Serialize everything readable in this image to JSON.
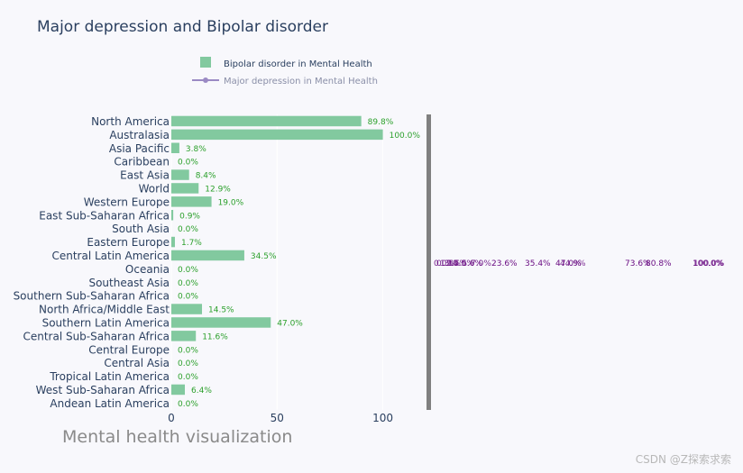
{
  "chart_data": {
    "type": "bar",
    "orientation": "horizontal",
    "title": "Major depression and Bipolar disorder",
    "subtitle": "Mental health visualization",
    "xlim": [
      0,
      120
    ],
    "x_ticks": [
      0,
      50,
      100
    ],
    "categories": [
      "North America",
      "Australasia",
      "Asia Pacific",
      "Caribbean",
      "East Asia",
      "World",
      "Western Europe",
      "East Sub-Saharan Africa",
      "South Asia",
      "Eastern Europe",
      "Central Latin America",
      "Oceania",
      "Southeast Asia",
      "Southern Sub-Saharan Africa",
      "North Africa/Middle East",
      "Southern Latin America",
      "Central Sub-Saharan Africa",
      "Central Europe",
      "Central Asia",
      "Tropical Latin America",
      "West Sub-Saharan Africa",
      "Andean Latin America"
    ],
    "series": [
      {
        "name": "Bipolar disorder in Mental Health",
        "type": "bar",
        "color": "#82c99f",
        "label_color": "#2ca02c",
        "values": [
          89.8,
          100.0,
          3.8,
          0.0,
          8.4,
          12.9,
          19.0,
          0.9,
          0.0,
          1.7,
          34.5,
          0.0,
          0.0,
          0.0,
          14.5,
          47.0,
          11.6,
          0.0,
          0.0,
          0.0,
          6.4,
          0.0
        ],
        "labels": [
          "89.8%",
          "100.0%",
          "3.8%",
          "0.0%",
          "8.4%",
          "12.9%",
          "19.0%",
          "0.9%",
          "0.0%",
          "1.7%",
          "34.5%",
          "0.0%",
          "0.0%",
          "0.0%",
          "14.5%",
          "47.0%",
          "11.6%",
          "0.0%",
          "0.0%",
          "0.0%",
          "6.4%",
          "0.0%"
        ]
      },
      {
        "name": "Major depression in Mental Health",
        "type": "line",
        "color": "#9b8ac4",
        "label_color": "#6a0d83",
        "visible_labels": [
          "23.6%",
          "35.4%",
          "47.0%",
          "73.6%",
          "80.8%",
          "100.0%"
        ]
      }
    ],
    "legend_position": "top-center",
    "grid": false
  },
  "watermark": "CSDN @Z探索求索"
}
